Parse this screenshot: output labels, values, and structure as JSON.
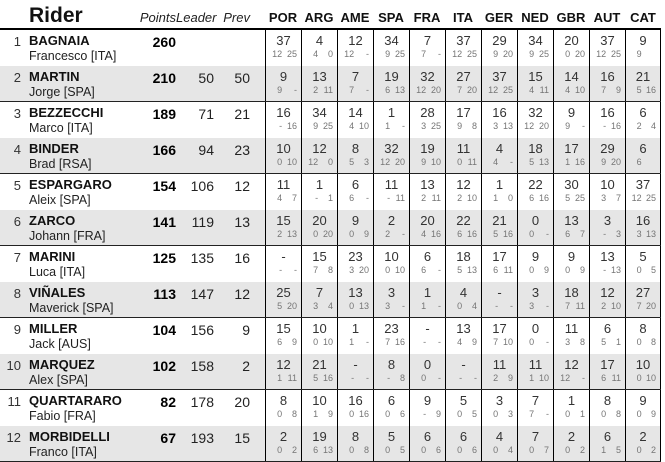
{
  "header": {
    "rider": "Rider",
    "points": "Points",
    "leader": "Leader",
    "prev": "Prev"
  },
  "colors": {
    "row_alt_background": "#e6e6e6",
    "grid_line": "#000000",
    "sub_value_text": "#757575",
    "main_text": "#111111"
  },
  "chart_data": {
    "type": "table",
    "title": "Riders championship standings with per-event points",
    "result_format": [
      "event_total",
      "sprint_points",
      "race_points"
    ],
    "races": [
      "POR",
      "ARG",
      "AME",
      "SPA",
      "FRA",
      "ITA",
      "GER",
      "NED",
      "GBR",
      "AUT",
      "CAT"
    ],
    "riders": [
      {
        "pos": "1",
        "surname": "BAGNAIA",
        "given": "Francesco [ITA]",
        "points": "260",
        "leader": "",
        "prev": "",
        "results": [
          [
            "37",
            "12",
            "25"
          ],
          [
            "4",
            "4",
            "0"
          ],
          [
            "12",
            "12",
            "-"
          ],
          [
            "34",
            "9",
            "25"
          ],
          [
            "7",
            "7",
            "-"
          ],
          [
            "37",
            "12",
            "25"
          ],
          [
            "29",
            "9",
            "20"
          ],
          [
            "34",
            "9",
            "25"
          ],
          [
            "20",
            "0",
            "20"
          ],
          [
            "37",
            "12",
            "25"
          ],
          [
            "9",
            "9",
            ""
          ]
        ]
      },
      {
        "pos": "2",
        "surname": "MARTIN",
        "given": "Jorge [SPA]",
        "points": "210",
        "leader": "50",
        "prev": "50",
        "results": [
          [
            "9",
            "9",
            "-"
          ],
          [
            "13",
            "2",
            "11"
          ],
          [
            "7",
            "7",
            "-"
          ],
          [
            "19",
            "6",
            "13"
          ],
          [
            "32",
            "12",
            "20"
          ],
          [
            "27",
            "7",
            "20"
          ],
          [
            "37",
            "12",
            "25"
          ],
          [
            "15",
            "4",
            "11"
          ],
          [
            "14",
            "4",
            "10"
          ],
          [
            "16",
            "7",
            "9"
          ],
          [
            "21",
            "5",
            "16"
          ]
        ]
      },
      {
        "pos": "3",
        "surname": "BEZZECCHI",
        "given": "Marco [ITA]",
        "points": "189",
        "leader": "71",
        "prev": "21",
        "results": [
          [
            "16",
            "-",
            "16"
          ],
          [
            "34",
            "9",
            "25"
          ],
          [
            "14",
            "4",
            "10"
          ],
          [
            "1",
            "1",
            "-"
          ],
          [
            "28",
            "3",
            "25"
          ],
          [
            "17",
            "9",
            "8"
          ],
          [
            "16",
            "3",
            "13"
          ],
          [
            "32",
            "12",
            "20"
          ],
          [
            "9",
            "9",
            "-"
          ],
          [
            "16",
            "-",
            "16"
          ],
          [
            "6",
            "2",
            "4"
          ]
        ]
      },
      {
        "pos": "4",
        "surname": "BINDER",
        "given": "Brad [RSA]",
        "points": "166",
        "leader": "94",
        "prev": "23",
        "results": [
          [
            "10",
            "0",
            "10"
          ],
          [
            "12",
            "12",
            "0"
          ],
          [
            "8",
            "5",
            "3"
          ],
          [
            "32",
            "12",
            "20"
          ],
          [
            "19",
            "9",
            "10"
          ],
          [
            "11",
            "0",
            "11"
          ],
          [
            "4",
            "4",
            "-"
          ],
          [
            "18",
            "5",
            "13"
          ],
          [
            "17",
            "1",
            "16"
          ],
          [
            "29",
            "9",
            "20"
          ],
          [
            "6",
            "6",
            ""
          ]
        ]
      },
      {
        "pos": "5",
        "surname": "ESPARGARO",
        "given": "Aleix [SPA]",
        "points": "154",
        "leader": "106",
        "prev": "12",
        "results": [
          [
            "11",
            "4",
            "7"
          ],
          [
            "1",
            "-",
            "1"
          ],
          [
            "6",
            "6",
            "-"
          ],
          [
            "11",
            "-",
            "11"
          ],
          [
            "13",
            "2",
            "11"
          ],
          [
            "12",
            "2",
            "10"
          ],
          [
            "1",
            "1",
            "0"
          ],
          [
            "22",
            "6",
            "16"
          ],
          [
            "30",
            "5",
            "25"
          ],
          [
            "10",
            "3",
            "7"
          ],
          [
            "37",
            "12",
            "25"
          ]
        ]
      },
      {
        "pos": "6",
        "surname": "ZARCO",
        "given": "Johann [FRA]",
        "points": "141",
        "leader": "119",
        "prev": "13",
        "results": [
          [
            "15",
            "2",
            "13"
          ],
          [
            "20",
            "0",
            "20"
          ],
          [
            "9",
            "0",
            "9"
          ],
          [
            "2",
            "2",
            "-"
          ],
          [
            "20",
            "4",
            "16"
          ],
          [
            "22",
            "6",
            "16"
          ],
          [
            "21",
            "5",
            "16"
          ],
          [
            "0",
            "0",
            "-"
          ],
          [
            "13",
            "6",
            "7"
          ],
          [
            "3",
            "-",
            "3"
          ],
          [
            "16",
            "3",
            "13"
          ]
        ]
      },
      {
        "pos": "7",
        "surname": "MARINI",
        "given": "Luca [ITA]",
        "points": "125",
        "leader": "135",
        "prev": "16",
        "results": [
          [
            "-",
            "-",
            "-"
          ],
          [
            "15",
            "7",
            "8"
          ],
          [
            "23",
            "3",
            "20"
          ],
          [
            "10",
            "0",
            "10"
          ],
          [
            "6",
            "6",
            "-"
          ],
          [
            "18",
            "5",
            "13"
          ],
          [
            "17",
            "6",
            "11"
          ],
          [
            "9",
            "0",
            "9"
          ],
          [
            "9",
            "0",
            "9"
          ],
          [
            "13",
            "-",
            "13"
          ],
          [
            "5",
            "0",
            "5"
          ]
        ]
      },
      {
        "pos": "8",
        "surname": "VIÑALES",
        "given": "Maverick [SPA]",
        "points": "113",
        "leader": "147",
        "prev": "12",
        "results": [
          [
            "25",
            "5",
            "20"
          ],
          [
            "7",
            "3",
            "4"
          ],
          [
            "13",
            "0",
            "13"
          ],
          [
            "3",
            "3",
            "-"
          ],
          [
            "1",
            "1",
            "-"
          ],
          [
            "4",
            "0",
            "4"
          ],
          [
            "-",
            "-",
            "-"
          ],
          [
            "3",
            "3",
            "-"
          ],
          [
            "18",
            "7",
            "11"
          ],
          [
            "12",
            "2",
            "10"
          ],
          [
            "27",
            "7",
            "20"
          ]
        ]
      },
      {
        "pos": "9",
        "surname": "MILLER",
        "given": "Jack [AUS]",
        "points": "104",
        "leader": "156",
        "prev": "9",
        "results": [
          [
            "15",
            "6",
            "9"
          ],
          [
            "10",
            "0",
            "10"
          ],
          [
            "1",
            "1",
            "-"
          ],
          [
            "23",
            "7",
            "16"
          ],
          [
            "-",
            "-",
            "-"
          ],
          [
            "13",
            "4",
            "9"
          ],
          [
            "17",
            "7",
            "10"
          ],
          [
            "0",
            "0",
            "-"
          ],
          [
            "11",
            "3",
            "8"
          ],
          [
            "6",
            "5",
            "1"
          ],
          [
            "8",
            "0",
            "8"
          ]
        ]
      },
      {
        "pos": "10",
        "surname": "MARQUEZ",
        "given": "Alex [SPA]",
        "points": "102",
        "leader": "158",
        "prev": "2",
        "results": [
          [
            "12",
            "1",
            "11"
          ],
          [
            "21",
            "5",
            "16"
          ],
          [
            "-",
            "-",
            "-"
          ],
          [
            "8",
            "-",
            "8"
          ],
          [
            "0",
            "0",
            "-"
          ],
          [
            "-",
            "-",
            "-"
          ],
          [
            "11",
            "2",
            "9"
          ],
          [
            "11",
            "1",
            "10"
          ],
          [
            "12",
            "12",
            "-"
          ],
          [
            "17",
            "6",
            "11"
          ],
          [
            "10",
            "0",
            "10"
          ]
        ]
      },
      {
        "pos": "11",
        "surname": "QUARTARARO",
        "given": "Fabio [FRA]",
        "points": "82",
        "leader": "178",
        "prev": "20",
        "results": [
          [
            "8",
            "0",
            "8"
          ],
          [
            "10",
            "1",
            "9"
          ],
          [
            "16",
            "0",
            "16"
          ],
          [
            "6",
            "0",
            "6"
          ],
          [
            "9",
            "-",
            "9"
          ],
          [
            "5",
            "0",
            "5"
          ],
          [
            "3",
            "0",
            "3"
          ],
          [
            "7",
            "7",
            "-"
          ],
          [
            "1",
            "0",
            "1"
          ],
          [
            "8",
            "0",
            "8"
          ],
          [
            "9",
            "0",
            "9"
          ]
        ]
      },
      {
        "pos": "12",
        "surname": "MORBIDELLI",
        "given": "Franco [ITA]",
        "points": "67",
        "leader": "193",
        "prev": "15",
        "results": [
          [
            "2",
            "0",
            "2"
          ],
          [
            "19",
            "6",
            "13"
          ],
          [
            "8",
            "0",
            "8"
          ],
          [
            "5",
            "0",
            "5"
          ],
          [
            "6",
            "0",
            "6"
          ],
          [
            "6",
            "0",
            "6"
          ],
          [
            "4",
            "0",
            "4"
          ],
          [
            "7",
            "0",
            "7"
          ],
          [
            "2",
            "0",
            "2"
          ],
          [
            "6",
            "1",
            "5"
          ],
          [
            "2",
            "0",
            "2"
          ]
        ]
      }
    ]
  }
}
